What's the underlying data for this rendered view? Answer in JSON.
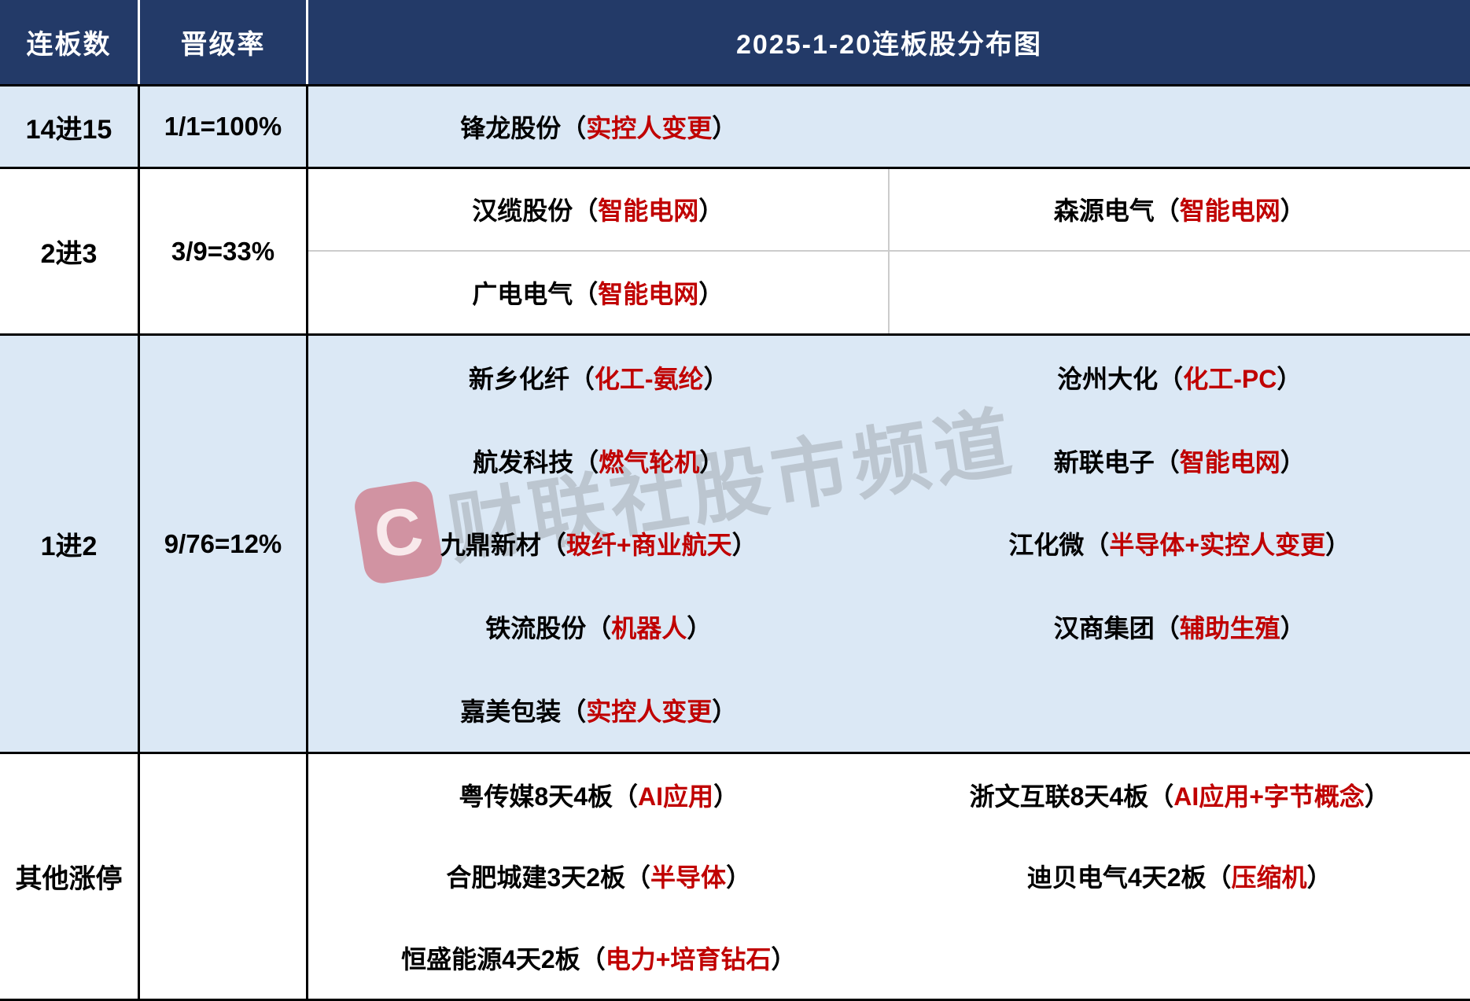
{
  "palette": {
    "header_bg": "#233A68",
    "row_alt_bg": "#DBE8F5",
    "row_bg": "#FFFFFF",
    "tag_red": "#C00000",
    "grid_gray": "#CCCCCC",
    "border_black": "#000000"
  },
  "punct": {
    "open": "（",
    "close": "）"
  },
  "header": {
    "col_streak": "连板数",
    "col_rate": "晋级率",
    "title": "2025-1-20连板股分布图"
  },
  "sections": [
    {
      "label": "14进15",
      "rate": "1/1=100%",
      "rows": [
        [
          {
            "name": "锋龙股份",
            "tag": "实控人变更"
          },
          null
        ]
      ]
    },
    {
      "label": "2进3",
      "rate": "3/9=33%",
      "rows": [
        [
          {
            "name": "汉缆股份",
            "tag": "智能电网"
          },
          {
            "name": "森源电气",
            "tag": "智能电网"
          }
        ],
        [
          {
            "name": "广电电气",
            "tag": "智能电网"
          },
          null
        ]
      ]
    },
    {
      "label": "1进2",
      "rate": "9/76=12%",
      "rows": [
        [
          {
            "name": "新乡化纤",
            "tag": "化工-氨纶"
          },
          {
            "name": "沧州大化",
            "tag": "化工-PC"
          }
        ],
        [
          {
            "name": "航发科技",
            "tag": "燃气轮机"
          },
          {
            "name": "新联电子",
            "tag": "智能电网"
          }
        ],
        [
          {
            "name": "九鼎新材",
            "tag": "玻纤+商业航天"
          },
          {
            "name": "江化微",
            "tag": "半导体+实控人变更"
          }
        ],
        [
          {
            "name": "铁流股份",
            "tag": "机器人"
          },
          {
            "name": "汉商集团",
            "tag": "辅助生殖"
          }
        ],
        [
          {
            "name": "嘉美包装",
            "tag": "实控人变更"
          },
          null
        ]
      ]
    },
    {
      "label": "其他涨停",
      "rate": "",
      "rows": [
        [
          {
            "name": "粤传媒8天4板",
            "tag": "AI应用"
          },
          {
            "name": "浙文互联8天4板",
            "tag": "AI应用+字节概念"
          }
        ],
        [
          {
            "name": "合肥城建3天2板",
            "tag": "半导体"
          },
          {
            "name": "迪贝电气4天2板",
            "tag": "压缩机"
          }
        ],
        [
          {
            "name": "恒盛能源4天2板",
            "tag": "电力+培育钻石"
          },
          null
        ]
      ]
    }
  ],
  "watermark": {
    "logo_letter": "C",
    "text": "财联社股市频道"
  }
}
